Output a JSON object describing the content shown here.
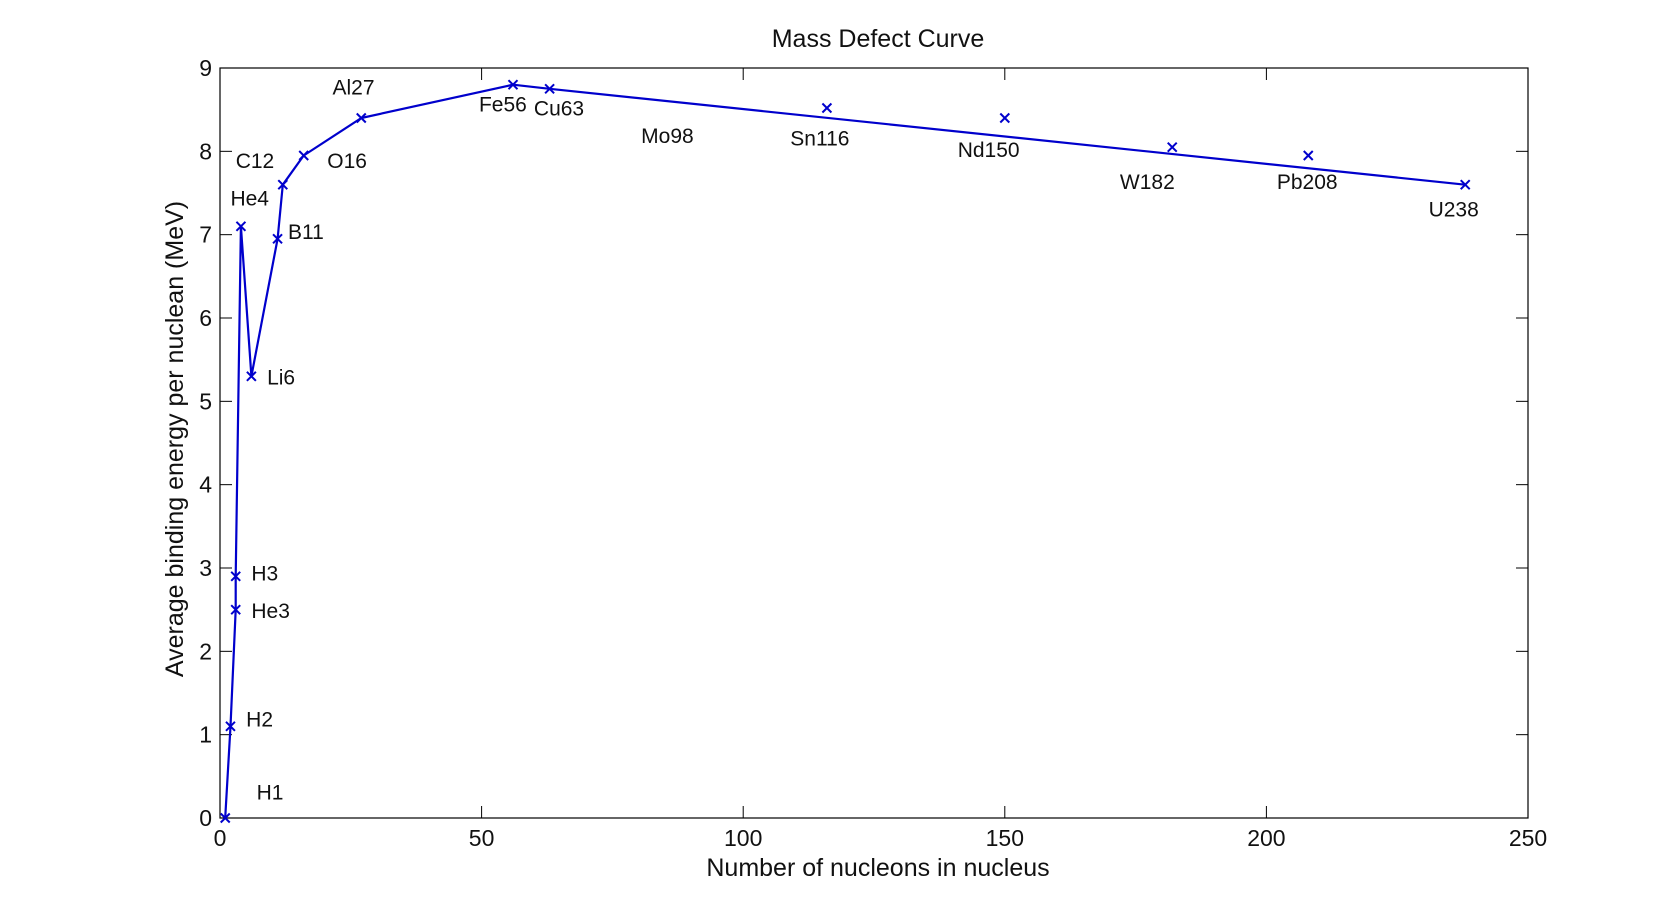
{
  "chart_data": {
    "type": "line",
    "title": "Mass Defect Curve",
    "xlabel": "Number of nucleons in nucleus",
    "ylabel": "Average binding energy per nuclean (MeV)",
    "xlim": [
      0,
      250
    ],
    "ylim": [
      0,
      9
    ],
    "xticks": [
      "0",
      "50",
      "100",
      "150",
      "200",
      "250"
    ],
    "yticks": [
      "0",
      "1",
      "2",
      "3",
      "4",
      "5",
      "6",
      "7",
      "8",
      "9"
    ],
    "grid": false,
    "line_color": "#0000cc",
    "marker": "x",
    "series": [
      {
        "x": [
          1,
          2,
          3,
          3,
          4,
          6,
          11,
          12,
          16,
          27,
          56,
          63,
          238
        ],
        "y": [
          0,
          1.1,
          2.5,
          2.9,
          7.1,
          5.3,
          6.95,
          7.6,
          7.95,
          8.4,
          8.8,
          8.75,
          7.6
        ]
      }
    ],
    "extra_points": [
      {
        "x": 116,
        "y": 8.52
      },
      {
        "x": 150,
        "y": 8.4
      },
      {
        "x": 182,
        "y": 8.05
      },
      {
        "x": 208,
        "y": 7.95
      }
    ],
    "annotations": [
      {
        "text": "H1",
        "x": 7,
        "y": 0.22
      },
      {
        "text": "H2",
        "x": 5,
        "y": 1.1
      },
      {
        "text": "He3",
        "x": 6,
        "y": 2.4
      },
      {
        "text": "H3",
        "x": 6,
        "y": 2.85
      },
      {
        "text": "He4",
        "x": 2,
        "y": 7.35
      },
      {
        "text": "Li6",
        "x": 9,
        "y": 5.2
      },
      {
        "text": "B11",
        "x": 13,
        "y": 6.95
      },
      {
        "text": "C12",
        "x": 3,
        "y": 7.8
      },
      {
        "text": "O16",
        "x": 20.5,
        "y": 7.8
      },
      {
        "text": "Al27",
        "x": 21.5,
        "y": 8.68
      },
      {
        "text": "Fe56",
        "x": 49.5,
        "y": 8.48
      },
      {
        "text": "Cu63",
        "x": 60,
        "y": 8.43
      },
      {
        "text": "Mo98",
        "x": 80.5,
        "y": 8.1
      },
      {
        "text": "Sn116",
        "x": 109,
        "y": 8.07
      },
      {
        "text": "Nd150",
        "x": 141,
        "y": 7.93
      },
      {
        "text": "W182",
        "x": 172,
        "y": 7.55
      },
      {
        "text": "Pb208",
        "x": 202,
        "y": 7.55
      },
      {
        "text": "U238",
        "x": 231,
        "y": 7.22
      }
    ]
  }
}
